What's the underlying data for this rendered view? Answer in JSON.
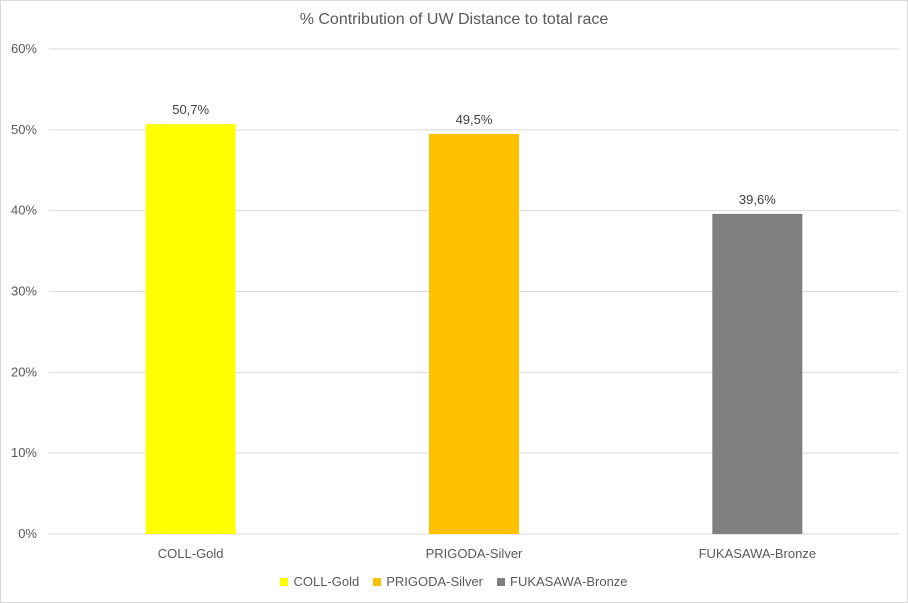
{
  "chart_data": {
    "type": "bar",
    "title": "% Contribution of UW Distance to total race",
    "xlabel": "",
    "ylabel": "",
    "categories": [
      "COLL-Gold",
      "PRIGODA-Silver",
      "FUKASAWA-Bronze"
    ],
    "values": [
      50.7,
      49.5,
      39.6
    ],
    "data_labels": [
      "50,7%",
      "49,5%",
      "39,6%"
    ],
    "colors": [
      "#ffff00",
      "#ffc000",
      "#7f7f7f"
    ],
    "ylim": [
      0,
      60
    ],
    "yticks": [
      0,
      10,
      20,
      30,
      40,
      50,
      60
    ],
    "ytick_labels": [
      "0%",
      "10%",
      "20%",
      "30%",
      "40%",
      "50%",
      "60%"
    ],
    "grid": true,
    "legend": {
      "placement": "bottom",
      "entries": [
        "COLL-Gold",
        "PRIGODA-Silver",
        "FUKASAWA-Bronze"
      ]
    }
  }
}
